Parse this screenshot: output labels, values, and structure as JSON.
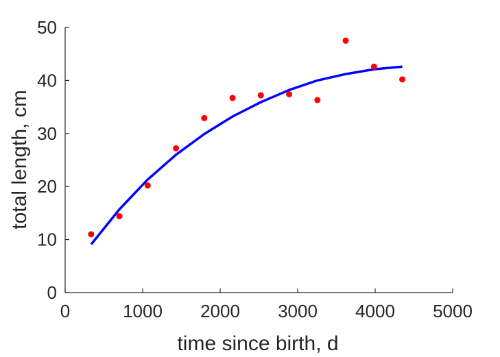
{
  "chart_data": {
    "type": "scatter",
    "title": "",
    "xlabel": "time since birth, d",
    "ylabel": "total length, cm",
    "xlim": [
      0,
      5000
    ],
    "ylim": [
      0,
      50
    ],
    "xticks": [
      0,
      1000,
      2000,
      3000,
      4000,
      5000
    ],
    "yticks": [
      0,
      10,
      20,
      30,
      40,
      50
    ],
    "grid": false,
    "legend": "none",
    "series": [
      {
        "kind": "points",
        "color": "#ff0000",
        "x": [
          335,
          700,
          1065,
          1430,
          1795,
          2160,
          2525,
          2890,
          3255,
          3620,
          3985,
          4350
        ],
        "y": [
          11.0,
          14.4,
          20.2,
          27.2,
          32.9,
          36.7,
          37.2,
          37.4,
          36.3,
          47.5,
          42.6,
          40.2
        ]
      },
      {
        "kind": "fit-line",
        "color": "#0000ff",
        "x": [
          335,
          700,
          1065,
          1430,
          1795,
          2160,
          2525,
          2890,
          3255,
          3620,
          3985,
          4350
        ],
        "y": [
          9.1,
          15.7,
          21.3,
          26.0,
          29.9,
          33.2,
          35.9,
          38.2,
          40.0,
          41.2,
          42.1,
          42.6
        ]
      }
    ]
  }
}
